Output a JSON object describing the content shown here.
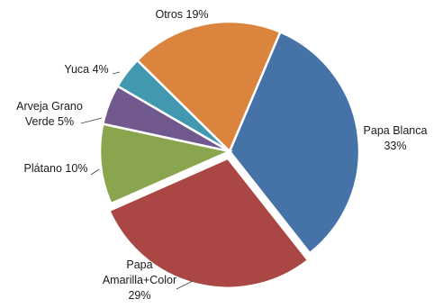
{
  "chart_data": {
    "type": "pie",
    "title": "",
    "start_angle_deg": 23,
    "direction": "clockwise",
    "legend": "none",
    "slices": [
      {
        "name": "Papa Blanca",
        "value": 33,
        "label_lines": [
          "Papa Blanca",
          "33%"
        ],
        "color": "#4573A7"
      },
      {
        "name": "Papa Amarilla+Color",
        "value": 29,
        "label_lines": [
          "Papa",
          "Amarilla+Color",
          "29%"
        ],
        "color": "#AA4644",
        "exploded": true
      },
      {
        "name": "Plátano",
        "value": 10,
        "label_lines": [
          "Plátano 10%"
        ],
        "color": "#89A54E"
      },
      {
        "name": "Arveja Grano Verde",
        "value": 5,
        "label_lines": [
          "Arveja Grano",
          "Verde 5%"
        ],
        "color": "#71588F"
      },
      {
        "name": "Yuca",
        "value": 4,
        "label_lines": [
          "Yuca 4%"
        ],
        "color": "#4298AF"
      },
      {
        "name": "Otros",
        "value": 19,
        "label_lines": [
          "Otros 19%"
        ],
        "color": "#DB843D"
      }
    ]
  }
}
